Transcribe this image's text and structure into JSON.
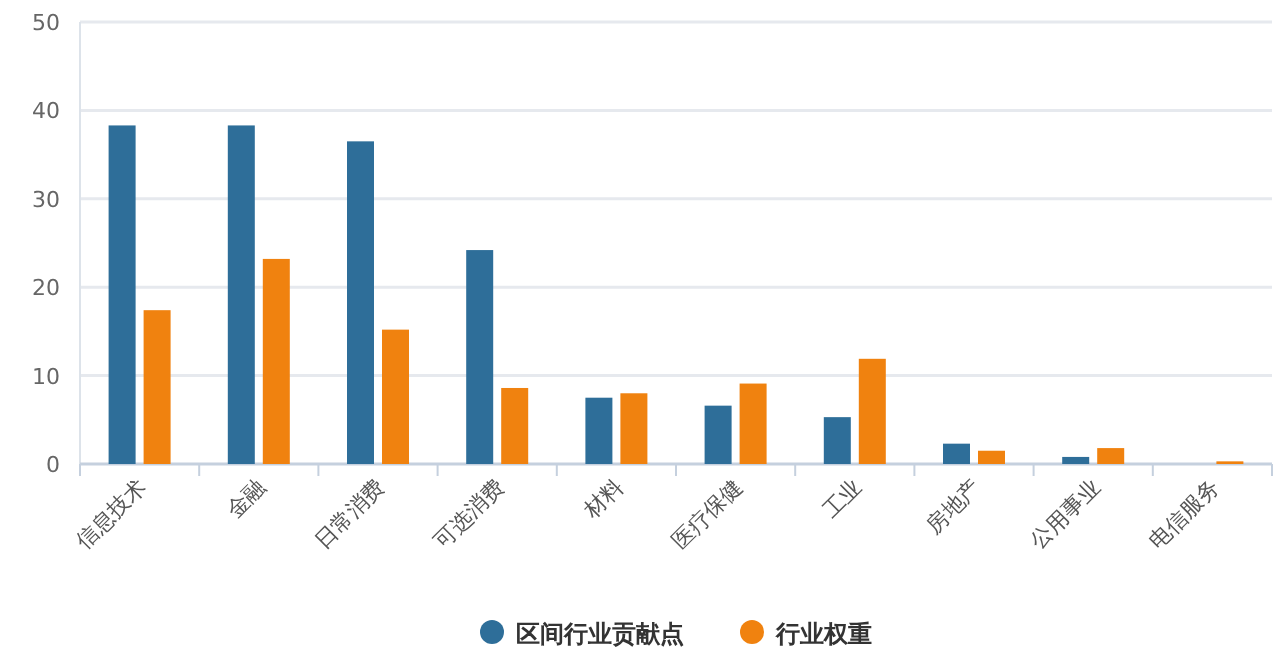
{
  "chart_data": {
    "type": "bar",
    "categories": [
      "信息技术",
      "金融",
      "日常消费",
      "可选消费",
      "材料",
      "医疗保健",
      "工业",
      "房地产",
      "公用事业",
      "电信服务"
    ],
    "series": [
      {
        "name": "区间行业贡献点",
        "color": "#2e6e99",
        "values": [
          38.3,
          38.3,
          36.5,
          24.2,
          7.5,
          6.6,
          5.3,
          2.3,
          0.8,
          0
        ]
      },
      {
        "name": "行业权重",
        "color": "#f0820f",
        "values": [
          17.4,
          23.2,
          15.2,
          8.6,
          8.0,
          9.1,
          11.9,
          1.5,
          1.8,
          0.3
        ]
      }
    ],
    "ylim": [
      0,
      50
    ],
    "yticks": [
      0,
      10,
      20,
      30,
      40,
      50
    ],
    "grid": "y",
    "legend": "bottom"
  }
}
